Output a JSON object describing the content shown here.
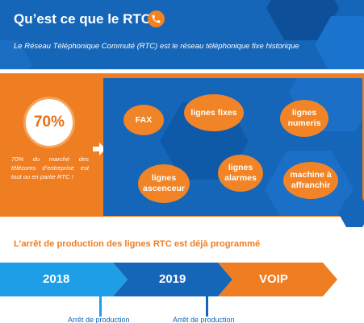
{
  "header": {
    "title": "Qu’est ce que le RTC ?",
    "subtitle": "Le Réseau Téléphonique Commuté (RTC) est le réseau téléphonique fixe historique",
    "icon": "phone-icon"
  },
  "stat": {
    "value": "70%",
    "description": "70% du marché des télécoms d’entreprise est tout ou en partie RTC !"
  },
  "bubbles": {
    "fax": "FAX",
    "lignes_fixes": "lignes fixes",
    "lignes_numeris": "lignes numeris",
    "lignes_ascenceur": "lignes ascenceur",
    "lignes_alarmes": "lignes alarmes",
    "machine_affranchir": "machine à affranchir"
  },
  "timeline": {
    "title": "L’arrêt de production des lignes RTC est déjà programmé",
    "steps": [
      "2018",
      "2019",
      "VOIP"
    ],
    "markers": [
      "Arrêt de production",
      "Arrêt de production"
    ]
  },
  "colors": {
    "blue": "#1565b8",
    "light_blue": "#1e9ee6",
    "orange": "#ef7d22"
  }
}
